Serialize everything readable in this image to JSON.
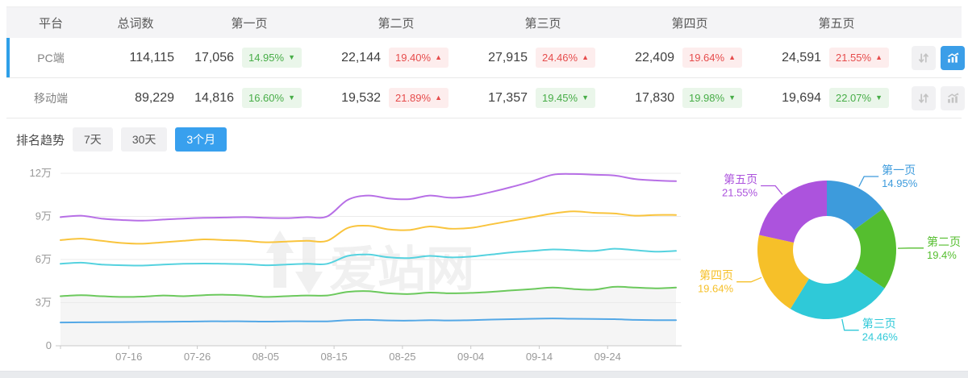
{
  "colors": {
    "accent_blue": "#38a0ee",
    "row_highlight_border": "#2e9fe8",
    "badge_up_text": "#e64c4c",
    "badge_up_bg": "#fdeded",
    "badge_down_text": "#47ad47",
    "badge_down_bg": "#eaf6ea",
    "axis_label": "#999999",
    "grid_line": "#ebebeb",
    "axis_line": "#c9c9c9",
    "watermark": "#f0f0f0",
    "area_fill": "#f5f5f5"
  },
  "table": {
    "headers": [
      "平台",
      "总词数",
      "第一页",
      "第二页",
      "第三页",
      "第四页",
      "第五页"
    ],
    "rows": [
      {
        "platform": "PC端",
        "total": "114,115",
        "selected": true,
        "chart_active": true,
        "pages": [
          {
            "value": "17,056",
            "change": "14.95%",
            "dir": "down"
          },
          {
            "value": "22,144",
            "change": "19.40%",
            "dir": "up"
          },
          {
            "value": "27,915",
            "change": "24.46%",
            "dir": "up"
          },
          {
            "value": "22,409",
            "change": "19.64%",
            "dir": "up"
          },
          {
            "value": "24,591",
            "change": "21.55%",
            "dir": "up"
          }
        ]
      },
      {
        "platform": "移动端",
        "total": "89,229",
        "selected": false,
        "chart_active": false,
        "pages": [
          {
            "value": "14,816",
            "change": "16.60%",
            "dir": "down"
          },
          {
            "value": "19,532",
            "change": "21.89%",
            "dir": "up"
          },
          {
            "value": "17,357",
            "change": "19.45%",
            "dir": "down"
          },
          {
            "value": "17,830",
            "change": "19.98%",
            "dir": "down"
          },
          {
            "value": "19,694",
            "change": "22.07%",
            "dir": "down"
          }
        ]
      }
    ]
  },
  "trend": {
    "label": "排名趋势",
    "tabs": [
      {
        "label": "7天",
        "active": false
      },
      {
        "label": "30天",
        "active": false
      },
      {
        "label": "3个月",
        "active": true
      }
    ]
  },
  "watermark": "爱站网",
  "chart_data": [
    {
      "type": "line",
      "unit": "万 (values_wan are in units of 10,000 words)",
      "y_ticks": [
        {
          "label": "12万",
          "v": 12
        },
        {
          "label": "9万",
          "v": 9
        },
        {
          "label": "6万",
          "v": 6
        },
        {
          "label": "3万",
          "v": 3
        },
        {
          "label": "0",
          "v": 0
        }
      ],
      "ylim_wan": [
        0,
        12
      ],
      "x_ticks": [
        {
          "label": "07-16",
          "day": 10
        },
        {
          "label": "07-26",
          "day": 20
        },
        {
          "label": "08-05",
          "day": 30
        },
        {
          "label": "08-15",
          "day": 40
        },
        {
          "label": "08-25",
          "day": 50
        },
        {
          "label": "09-04",
          "day": 60
        },
        {
          "label": "09-14",
          "day": 70
        },
        {
          "label": "09-24",
          "day": 80
        }
      ],
      "x_range_days": [
        0,
        90
      ],
      "day_offsets": [
        0,
        3,
        6,
        9,
        12,
        15,
        18,
        21,
        24,
        27,
        30,
        33,
        36,
        39,
        42,
        45,
        48,
        51,
        54,
        57,
        60,
        63,
        66,
        69,
        72,
        75,
        78,
        81,
        84,
        87,
        90
      ],
      "grid": true,
      "series": [
        {
          "name": "series-purple",
          "color": "#b76fe6",
          "values_wan": [
            8.95,
            9.05,
            8.85,
            8.75,
            8.7,
            8.78,
            8.85,
            8.9,
            8.92,
            8.95,
            8.9,
            8.88,
            8.95,
            9.0,
            10.15,
            10.45,
            10.25,
            10.2,
            10.45,
            10.3,
            10.4,
            10.7,
            11.05,
            11.45,
            11.9,
            11.95,
            11.9,
            11.85,
            11.6,
            11.5,
            11.45
          ]
        },
        {
          "name": "series-yellow",
          "color": "#f9c43d",
          "values_wan": [
            7.35,
            7.45,
            7.3,
            7.15,
            7.1,
            7.2,
            7.3,
            7.4,
            7.35,
            7.3,
            7.2,
            7.25,
            7.3,
            7.3,
            8.2,
            8.35,
            8.1,
            8.05,
            8.3,
            8.15,
            8.2,
            8.45,
            8.7,
            8.95,
            9.2,
            9.35,
            9.25,
            9.2,
            9.05,
            9.1,
            9.1
          ]
        },
        {
          "name": "series-cyan",
          "color": "#55d2df",
          "values_wan": [
            5.7,
            5.78,
            5.65,
            5.6,
            5.58,
            5.65,
            5.7,
            5.72,
            5.7,
            5.68,
            5.6,
            5.65,
            5.7,
            5.7,
            6.25,
            6.35,
            6.15,
            6.1,
            6.25,
            6.15,
            6.2,
            6.35,
            6.5,
            6.6,
            6.7,
            6.65,
            6.6,
            6.75,
            6.65,
            6.55,
            6.6
          ]
        },
        {
          "name": "series-green",
          "color": "#6cc95d",
          "area": "#f5f5f5",
          "values_wan": [
            3.45,
            3.52,
            3.45,
            3.4,
            3.42,
            3.5,
            3.45,
            3.52,
            3.55,
            3.5,
            3.4,
            3.45,
            3.5,
            3.5,
            3.75,
            3.8,
            3.65,
            3.6,
            3.7,
            3.65,
            3.68,
            3.75,
            3.85,
            3.95,
            4.05,
            3.95,
            3.9,
            4.1,
            4.05,
            4.0,
            4.05
          ]
        },
        {
          "name": "series-blue",
          "color": "#54a8e6",
          "values_wan": [
            1.62,
            1.63,
            1.64,
            1.65,
            1.66,
            1.67,
            1.68,
            1.7,
            1.7,
            1.7,
            1.68,
            1.7,
            1.7,
            1.7,
            1.78,
            1.8,
            1.76,
            1.75,
            1.78,
            1.76,
            1.78,
            1.82,
            1.85,
            1.88,
            1.9,
            1.88,
            1.86,
            1.85,
            1.8,
            1.78,
            1.78
          ]
        }
      ]
    },
    {
      "type": "pie",
      "donut": true,
      "legend_position": "around-slices",
      "slices": [
        {
          "label": "第一页",
          "pct": 14.95,
          "display": "14.95%",
          "color": "#3d9bdc"
        },
        {
          "label": "第二页",
          "pct": 19.4,
          "display": "19.4%",
          "color": "#55be2f"
        },
        {
          "label": "第三页",
          "pct": 24.46,
          "display": "24.46%",
          "color": "#2fc9d8"
        },
        {
          "label": "第四页",
          "pct": 19.64,
          "display": "19.64%",
          "color": "#f6c029"
        },
        {
          "label": "第五页",
          "pct": 21.55,
          "display": "21.55%",
          "color": "#ac53dd"
        }
      ]
    }
  ]
}
